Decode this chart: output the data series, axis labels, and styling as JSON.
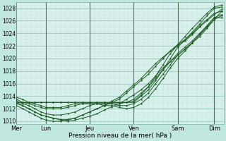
{
  "bg_color": "#c0e8e0",
  "plot_bg_color": "#d8f0ec",
  "grid_color_minor": "#b8ddd8",
  "grid_color_major": "#90c0b8",
  "line_color": "#1a5c20",
  "xlabel_text": "Pression niveau de la mer( hPa )",
  "yticks": [
    1010,
    1012,
    1014,
    1016,
    1018,
    1020,
    1022,
    1024,
    1026,
    1028
  ],
  "xtick_labels": [
    "Mer",
    "Lun",
    "Jeu",
    "Ven",
    "Sam",
    "Dim"
  ],
  "xtick_positions": [
    0,
    24,
    60,
    96,
    132,
    162
  ],
  "xlim": [
    0,
    170
  ],
  "ylim": [
    1009.5,
    1029.0
  ],
  "line_width": 0.7,
  "marker_size": 1.2,
  "series": [
    {
      "x": [
        0,
        5,
        10,
        15,
        20,
        24,
        30,
        36,
        42,
        48,
        54,
        60,
        66,
        72,
        78,
        84,
        90,
        96,
        102,
        108,
        114,
        120,
        126,
        132,
        138,
        144,
        150,
        156,
        162,
        168
      ],
      "y": [
        1012.8,
        1012.5,
        1012.0,
        1011.5,
        1011.0,
        1010.8,
        1010.5,
        1010.2,
        1010.0,
        1010.2,
        1010.5,
        1010.8,
        1011.2,
        1011.8,
        1012.3,
        1012.8,
        1013.5,
        1014.2,
        1015.0,
        1016.0,
        1017.2,
        1018.5,
        1019.5,
        1020.5,
        1021.5,
        1022.5,
        1023.5,
        1024.8,
        1026.2,
        1027.5
      ]
    },
    {
      "x": [
        0,
        5,
        10,
        15,
        20,
        24,
        30,
        36,
        42,
        48,
        54,
        60,
        66,
        72,
        78,
        84,
        90,
        96,
        102,
        108,
        114,
        120,
        126,
        132,
        138,
        144,
        150,
        156,
        162,
        168
      ],
      "y": [
        1012.5,
        1012.0,
        1011.5,
        1011.0,
        1010.5,
        1010.2,
        1010.0,
        1010.0,
        1010.2,
        1010.5,
        1011.0,
        1011.5,
        1012.0,
        1012.5,
        1013.0,
        1013.5,
        1014.5,
        1015.5,
        1016.5,
        1017.5,
        1018.8,
        1020.0,
        1021.2,
        1022.0,
        1022.8,
        1023.8,
        1025.0,
        1026.0,
        1027.0,
        1027.8
      ]
    },
    {
      "x": [
        0,
        5,
        10,
        15,
        20,
        24,
        30,
        36,
        42,
        48,
        54,
        60,
        66,
        72,
        78,
        84,
        90,
        96,
        102,
        108,
        114,
        120,
        126,
        132,
        138,
        144,
        150,
        156,
        162,
        168
      ],
      "y": [
        1013.0,
        1012.5,
        1012.0,
        1011.5,
        1011.0,
        1010.8,
        1010.5,
        1010.3,
        1010.3,
        1010.5,
        1011.0,
        1011.5,
        1012.0,
        1012.5,
        1013.2,
        1013.8,
        1014.8,
        1015.8,
        1016.8,
        1018.0,
        1019.2,
        1020.2,
        1021.2,
        1022.2,
        1023.0,
        1024.0,
        1025.2,
        1026.2,
        1027.2,
        1027.5
      ]
    },
    {
      "x": [
        0,
        5,
        10,
        15,
        20,
        24,
        30,
        36,
        42,
        48,
        54,
        60,
        66,
        72,
        78,
        84,
        90,
        96,
        102,
        108,
        114,
        120,
        126,
        132,
        138,
        144,
        150,
        156,
        162,
        168
      ],
      "y": [
        1013.2,
        1012.8,
        1012.5,
        1012.0,
        1011.5,
        1011.2,
        1011.0,
        1011.0,
        1011.2,
        1011.5,
        1012.0,
        1012.5,
        1012.8,
        1012.8,
        1012.8,
        1012.8,
        1013.0,
        1013.5,
        1014.5,
        1015.5,
        1016.8,
        1018.2,
        1019.5,
        1020.8,
        1021.8,
        1022.8,
        1024.0,
        1025.2,
        1026.5,
        1026.5
      ]
    },
    {
      "x": [
        0,
        5,
        10,
        15,
        20,
        24,
        30,
        36,
        42,
        48,
        54,
        60,
        66,
        72,
        78,
        84,
        90,
        96,
        102,
        108,
        114,
        120,
        126,
        132,
        138,
        144,
        150,
        156,
        162,
        168
      ],
      "y": [
        1013.5,
        1013.0,
        1012.8,
        1012.5,
        1012.2,
        1012.0,
        1012.0,
        1012.0,
        1012.2,
        1012.5,
        1012.8,
        1012.8,
        1012.8,
        1012.8,
        1012.8,
        1012.5,
        1012.5,
        1012.8,
        1013.5,
        1014.5,
        1016.0,
        1017.5,
        1019.0,
        1020.5,
        1021.5,
        1022.5,
        1023.8,
        1025.0,
        1026.2,
        1026.8
      ]
    },
    {
      "x": [
        0,
        5,
        10,
        15,
        20,
        24,
        30,
        36,
        42,
        48,
        54,
        60,
        66,
        72,
        78,
        84,
        90,
        96,
        102,
        108,
        114,
        120,
        126,
        132,
        138,
        144,
        150,
        156,
        162,
        168
      ],
      "y": [
        1013.8,
        1013.5,
        1013.0,
        1012.8,
        1012.5,
        1012.2,
        1012.2,
        1012.2,
        1012.5,
        1012.8,
        1012.8,
        1012.8,
        1012.8,
        1012.5,
        1012.5,
        1012.2,
        1012.0,
        1012.2,
        1012.8,
        1013.8,
        1015.2,
        1016.8,
        1018.5,
        1020.0,
        1021.2,
        1022.5,
        1023.8,
        1025.2,
        1026.5,
        1027.0
      ]
    },
    {
      "x": [
        0,
        5,
        10,
        15,
        20,
        24,
        30,
        36,
        42,
        48,
        54,
        60,
        66,
        72,
        78,
        84,
        90,
        96,
        102,
        108,
        114,
        120,
        126,
        132,
        138,
        144,
        150,
        156,
        162,
        168
      ],
      "y": [
        1013.0,
        1013.0,
        1013.0,
        1013.0,
        1013.0,
        1013.0,
        1013.0,
        1013.0,
        1013.0,
        1013.0,
        1013.0,
        1013.0,
        1013.0,
        1013.0,
        1013.0,
        1013.0,
        1013.0,
        1013.0,
        1014.0,
        1015.0,
        1016.5,
        1018.2,
        1020.0,
        1021.8,
        1023.0,
        1024.2,
        1025.5,
        1026.8,
        1028.0,
        1028.2
      ]
    },
    {
      "x": [
        0,
        5,
        10,
        15,
        20,
        24,
        30,
        36,
        42,
        48,
        54,
        60,
        66,
        72,
        78,
        84,
        90,
        96,
        102,
        108,
        114,
        120,
        126,
        132,
        138,
        144,
        150,
        156,
        162,
        168
      ],
      "y": [
        1013.0,
        1013.0,
        1013.0,
        1013.0,
        1013.0,
        1013.0,
        1013.0,
        1013.0,
        1013.0,
        1013.0,
        1013.0,
        1013.0,
        1013.0,
        1013.0,
        1013.0,
        1013.0,
        1013.0,
        1013.2,
        1014.2,
        1015.5,
        1017.2,
        1019.0,
        1020.8,
        1022.2,
        1023.5,
        1024.8,
        1026.0,
        1027.2,
        1028.2,
        1028.5
      ]
    }
  ]
}
